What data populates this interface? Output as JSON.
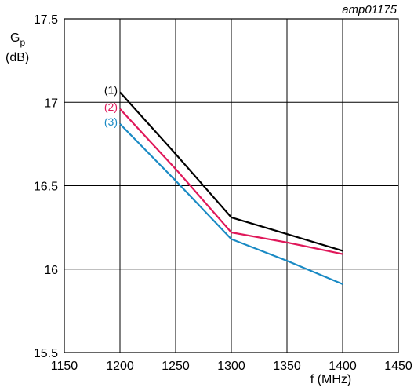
{
  "chart_data": {
    "type": "line",
    "reference_code": "amp01175",
    "ylabel_main": "G",
    "ylabel_sub": "p",
    "ylabel_unit": "(dB)",
    "xlabel": "f (MHz)",
    "xlim": [
      1150,
      1450
    ],
    "ylim": [
      15.5,
      17.5
    ],
    "x_ticks": [
      "1150",
      "1200",
      "1250",
      "1300",
      "1350",
      "1400",
      "1450"
    ],
    "y_ticks": [
      "15.5",
      "16",
      "16.5",
      "17",
      "17.5"
    ],
    "grid": true,
    "series": [
      {
        "name": "(1)",
        "color": "#000000",
        "x": [
          1200,
          1250,
          1300,
          1350,
          1400
        ],
        "y": [
          17.06,
          16.69,
          16.31,
          16.21,
          16.11
        ]
      },
      {
        "name": "(2)",
        "color": "#e0185a",
        "x": [
          1200,
          1250,
          1300,
          1350,
          1400
        ],
        "y": [
          16.96,
          16.6,
          16.22,
          16.16,
          16.09
        ]
      },
      {
        "name": "(3)",
        "color": "#1a8ac4",
        "x": [
          1200,
          1250,
          1300,
          1350,
          1400
        ],
        "y": [
          16.87,
          16.53,
          16.18,
          16.05,
          15.91
        ]
      }
    ]
  }
}
